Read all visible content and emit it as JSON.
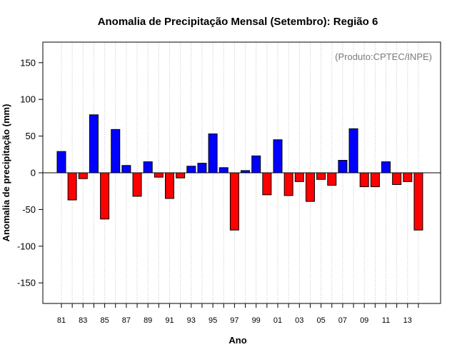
{
  "chart_data": {
    "type": "bar",
    "title": "Anomalia de Precipitação Mensal (Setembro): Região 6",
    "xlabel": "Ano",
    "ylabel": "Anomalia de precipitação (mm)",
    "annotation": "(Produto:CPTEC/INPE)",
    "ylim": [
      -178,
      178
    ],
    "yticks": [
      -150,
      -100,
      -50,
      0,
      50,
      100,
      150
    ],
    "categories": [
      "81",
      "82",
      "83",
      "84",
      "85",
      "86",
      "87",
      "88",
      "89",
      "90",
      "91",
      "92",
      "93",
      "94",
      "95",
      "96",
      "97",
      "98",
      "99",
      "00",
      "01",
      "02",
      "03",
      "04",
      "05",
      "06",
      "07",
      "08",
      "09",
      "10",
      "11",
      "12",
      "13",
      "14"
    ],
    "xtick_labels": [
      "81",
      "83",
      "85",
      "87",
      "89",
      "91",
      "93",
      "95",
      "97",
      "99",
      "01",
      "03",
      "05",
      "07",
      "09",
      "11",
      "13"
    ],
    "values": [
      29,
      -37,
      -8,
      79,
      -63,
      59,
      10,
      -32,
      15,
      -6,
      -35,
      -7,
      9,
      13,
      53,
      7,
      -78,
      3,
      23,
      -30,
      45,
      -31,
      -12,
      -39,
      -9,
      -17,
      17,
      60,
      -19,
      -19,
      15,
      -16,
      -12,
      -78
    ],
    "grid": "vertical-dotted",
    "legend": "none",
    "colors": {
      "positive": "#0000ff",
      "negative": "#ff0000",
      "outline": "#000000",
      "grid": "#bfbfbf",
      "annotation": "#7a7a7a"
    }
  }
}
